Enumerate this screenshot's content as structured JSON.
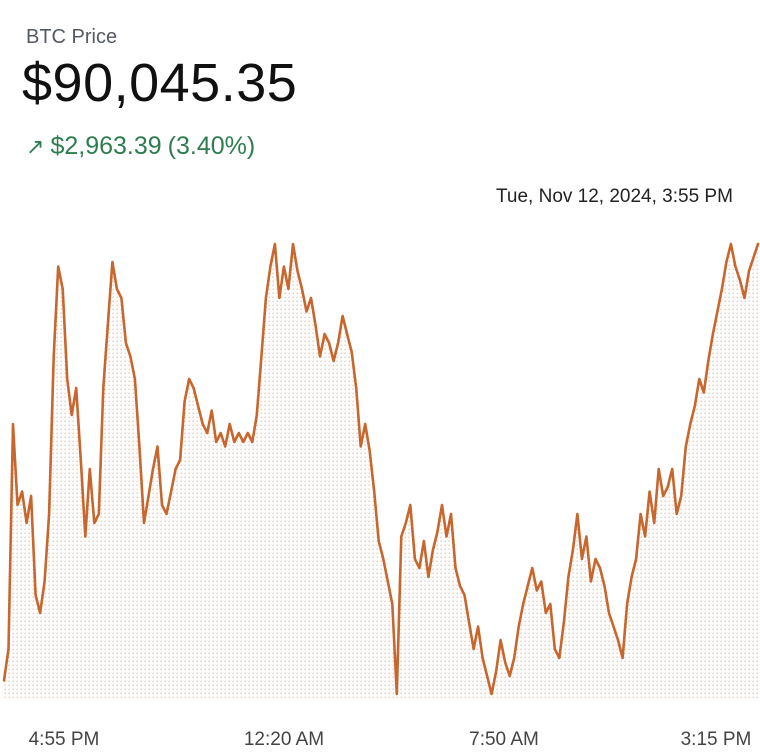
{
  "header": {
    "label": "BTC Price",
    "price": "$90,045.35",
    "change_arrow": "↗",
    "change_value": "$2,963.39",
    "change_percent": "(3.40%)",
    "tooltip": "Tue, Nov 12, 2024, 3:55 PM"
  },
  "colors": {
    "line": "#c8662e",
    "change_text": "#2e7d4f",
    "fill_dot": "#e3c3ab"
  },
  "chart_data": {
    "type": "area",
    "title": "BTC Price",
    "xlabel": "",
    "ylabel": "",
    "x_tick_labels": [
      "4:55 PM",
      "12:20 AM",
      "7:50 AM",
      "3:15 PM"
    ],
    "grid": false,
    "legend": "none",
    "series": [
      {
        "values": [
          3,
          10,
          60,
          42,
          45,
          38,
          44,
          22,
          18,
          25,
          40,
          75,
          95,
          90,
          70,
          62,
          68,
          52,
          35,
          50,
          38,
          40,
          68,
          82,
          96,
          90,
          88,
          78,
          75,
          70,
          55,
          38,
          44,
          50,
          55,
          42,
          40,
          45,
          50,
          52,
          65,
          70,
          68,
          64,
          60,
          58,
          63,
          56,
          58,
          55,
          60,
          56,
          58,
          56,
          58,
          56,
          62,
          75,
          88,
          95,
          100,
          88,
          95,
          90,
          100,
          94,
          90,
          85,
          88,
          82,
          75,
          80,
          78,
          74,
          78,
          84,
          80,
          76,
          68,
          55,
          60,
          54,
          45,
          34,
          30,
          25,
          20,
          0,
          35,
          38,
          42,
          30,
          28,
          34,
          26,
          32,
          36,
          42,
          35,
          40,
          28,
          24,
          22,
          16,
          10,
          15,
          8,
          4,
          0,
          5,
          12,
          7,
          4,
          8,
          15,
          20,
          24,
          28,
          23,
          25,
          18,
          20,
          10,
          8,
          16,
          26,
          32,
          40,
          30,
          35,
          25,
          30,
          28,
          24,
          18,
          15,
          12,
          8,
          20,
          26,
          30,
          40,
          35,
          45,
          38,
          50,
          44,
          46,
          50,
          40,
          44,
          55,
          60,
          64,
          70,
          67,
          74,
          80,
          85,
          90,
          96,
          100,
          95,
          92,
          88,
          94,
          97,
          100
        ]
      }
    ]
  }
}
